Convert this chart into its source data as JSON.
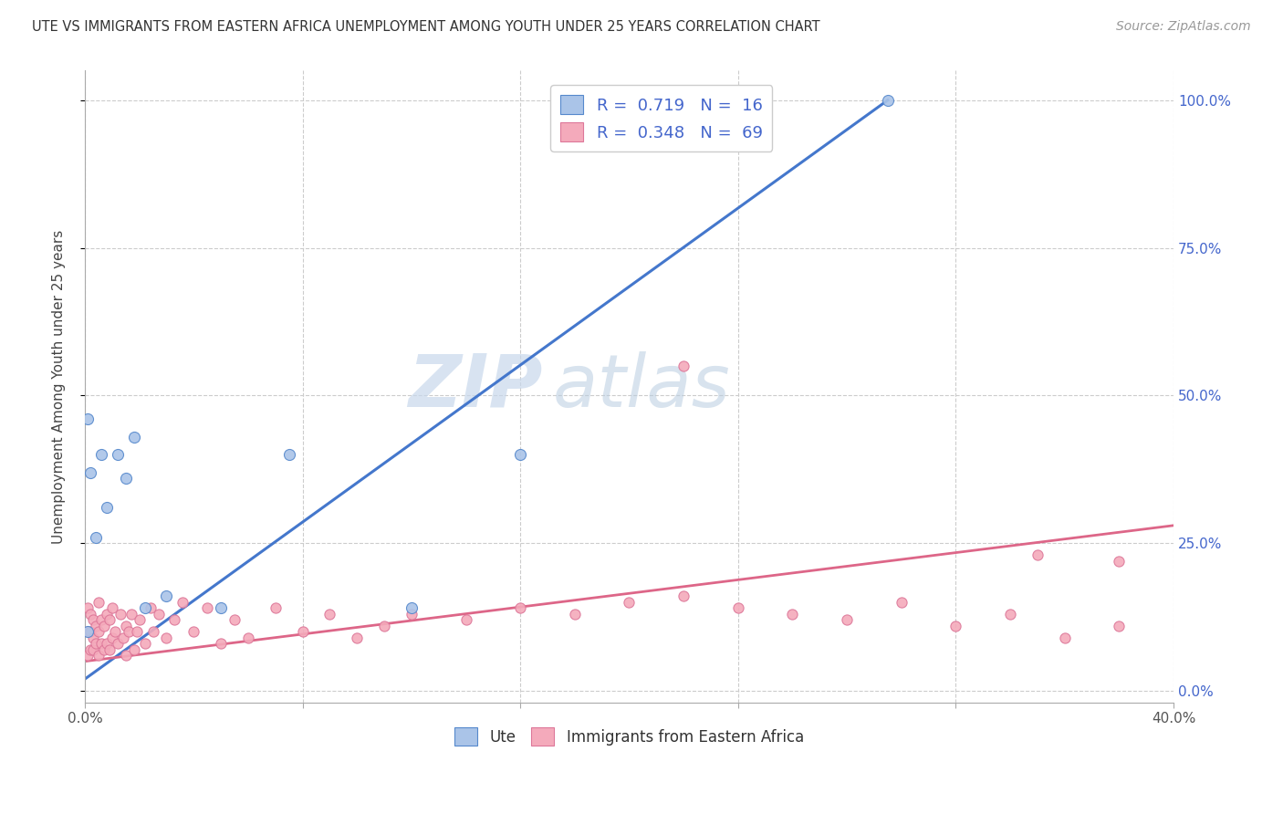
{
  "title": "UTE VS IMMIGRANTS FROM EASTERN AFRICA UNEMPLOYMENT AMONG YOUTH UNDER 25 YEARS CORRELATION CHART",
  "source": "Source: ZipAtlas.com",
  "ylabel": "Unemployment Among Youth under 25 years",
  "xlim": [
    0.0,
    0.4
  ],
  "ylim": [
    -0.02,
    1.05
  ],
  "legend_label1": "Ute",
  "legend_label2": "Immigrants from Eastern Africa",
  "r1": "0.719",
  "n1": "16",
  "r2": "0.348",
  "n2": "69",
  "color_ute_fill": "#aac4e8",
  "color_ute_edge": "#5588cc",
  "color_imm_fill": "#f4aabb",
  "color_imm_edge": "#dd7799",
  "color_ute_line": "#4477cc",
  "color_imm_line": "#dd6688",
  "color_right_axis": "#4466cc",
  "color_grid": "#cccccc",
  "color_title": "#333333",
  "color_source": "#999999",
  "watermark_zip": "ZIP",
  "watermark_atlas": "atlas",
  "background": "#ffffff",
  "ute_x": [
    0.001,
    0.002,
    0.004,
    0.006,
    0.008,
    0.012,
    0.015,
    0.018,
    0.022,
    0.03,
    0.05,
    0.075,
    0.12,
    0.16,
    0.295,
    0.001
  ],
  "ute_y": [
    0.46,
    0.37,
    0.26,
    0.4,
    0.31,
    0.4,
    0.36,
    0.43,
    0.14,
    0.16,
    0.14,
    0.4,
    0.14,
    0.4,
    1.0,
    0.1
  ],
  "ute_line_x": [
    0.0,
    0.295
  ],
  "ute_line_y": [
    0.02,
    1.0
  ],
  "imm_line_x": [
    0.0,
    0.4
  ],
  "imm_line_y": [
    0.05,
    0.28
  ],
  "imm_x": [
    0.001,
    0.001,
    0.001,
    0.002,
    0.002,
    0.002,
    0.003,
    0.003,
    0.003,
    0.004,
    0.004,
    0.005,
    0.005,
    0.005,
    0.006,
    0.006,
    0.007,
    0.007,
    0.008,
    0.008,
    0.009,
    0.009,
    0.01,
    0.01,
    0.011,
    0.012,
    0.013,
    0.014,
    0.015,
    0.015,
    0.016,
    0.017,
    0.018,
    0.019,
    0.02,
    0.022,
    0.024,
    0.025,
    0.027,
    0.03,
    0.033,
    0.036,
    0.04,
    0.045,
    0.05,
    0.055,
    0.06,
    0.07,
    0.08,
    0.09,
    0.1,
    0.11,
    0.12,
    0.14,
    0.16,
    0.18,
    0.2,
    0.22,
    0.24,
    0.26,
    0.28,
    0.3,
    0.32,
    0.34,
    0.36,
    0.38,
    0.35,
    0.22,
    0.38
  ],
  "imm_y": [
    0.06,
    0.1,
    0.14,
    0.07,
    0.1,
    0.13,
    0.07,
    0.09,
    0.12,
    0.08,
    0.11,
    0.06,
    0.1,
    0.15,
    0.08,
    0.12,
    0.07,
    0.11,
    0.08,
    0.13,
    0.07,
    0.12,
    0.09,
    0.14,
    0.1,
    0.08,
    0.13,
    0.09,
    0.06,
    0.11,
    0.1,
    0.13,
    0.07,
    0.1,
    0.12,
    0.08,
    0.14,
    0.1,
    0.13,
    0.09,
    0.12,
    0.15,
    0.1,
    0.14,
    0.08,
    0.12,
    0.09,
    0.14,
    0.1,
    0.13,
    0.09,
    0.11,
    0.13,
    0.12,
    0.14,
    0.13,
    0.15,
    0.16,
    0.14,
    0.13,
    0.12,
    0.15,
    0.11,
    0.13,
    0.09,
    0.11,
    0.23,
    0.55,
    0.22
  ]
}
